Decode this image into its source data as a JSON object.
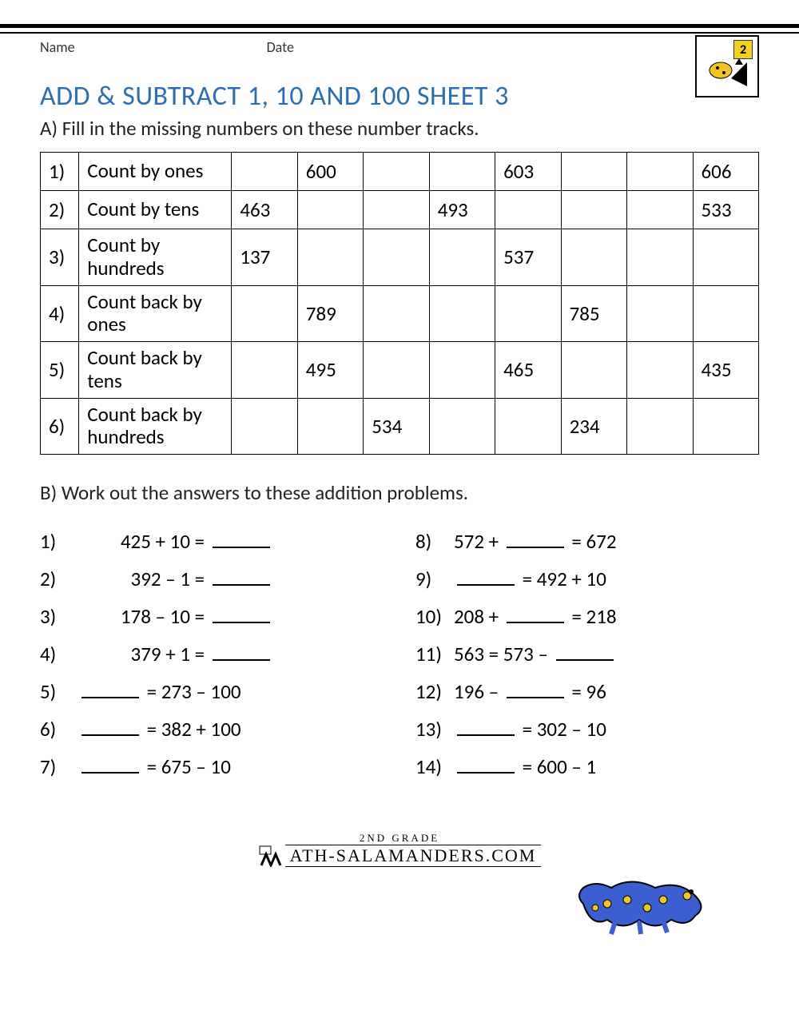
{
  "header": {
    "name_label": "Name",
    "date_label": "Date",
    "grade_badge": "2"
  },
  "title": "ADD & SUBTRACT 1, 10 AND 100 SHEET 3",
  "sectionA": {
    "instruction": "A) Fill in the missing numbers on these number tracks.",
    "rows": [
      {
        "n": "1)",
        "label": "Count by ones",
        "cells": [
          "",
          "600",
          "",
          "",
          "603",
          "",
          "",
          "606"
        ]
      },
      {
        "n": "2)",
        "label": "Count by tens",
        "cells": [
          "463",
          "",
          "",
          "493",
          "",
          "",
          "",
          "533"
        ]
      },
      {
        "n": "3)",
        "label": "Count by hundreds",
        "cells": [
          "137",
          "",
          "",
          "",
          "537",
          "",
          "",
          ""
        ]
      },
      {
        "n": "4)",
        "label": "Count back by ones",
        "cells": [
          "",
          "789",
          "",
          "",
          "",
          "785",
          "",
          ""
        ]
      },
      {
        "n": "5)",
        "label": "Count back by tens",
        "cells": [
          "",
          "495",
          "",
          "",
          "465",
          "",
          "",
          "435"
        ]
      },
      {
        "n": "6)",
        "label": "Count back by hundreds",
        "cells": [
          "",
          "",
          "534",
          "",
          "",
          "234",
          "",
          ""
        ]
      }
    ]
  },
  "sectionB": {
    "instruction": "B) Work out the answers to these addition problems.",
    "left": [
      {
        "n": "1)",
        "parts": [
          "425 + 10",
          "=",
          "_"
        ]
      },
      {
        "n": "2)",
        "parts": [
          "392 – 1",
          "=",
          "_"
        ]
      },
      {
        "n": "3)",
        "parts": [
          "178 – 10",
          "=",
          "_"
        ]
      },
      {
        "n": "4)",
        "parts": [
          "379 + 1",
          "=",
          "_"
        ]
      },
      {
        "n": "5)",
        "parts": [
          "_",
          "=",
          "273 – 100"
        ]
      },
      {
        "n": "6)",
        "parts": [
          "_",
          "=",
          "382 + 100"
        ]
      },
      {
        "n": "7)",
        "parts": [
          "_",
          "=",
          "675 – 10"
        ]
      }
    ],
    "right": [
      {
        "n": "8)",
        "parts": [
          "572 +",
          "_",
          "=",
          "672"
        ]
      },
      {
        "n": "9)",
        "parts": [
          "_",
          "=",
          "492 + 10"
        ]
      },
      {
        "n": "10)",
        "parts": [
          "208 +",
          "_",
          "=",
          "218"
        ]
      },
      {
        "n": "11)",
        "parts": [
          "563",
          "=",
          "573 –",
          "_"
        ]
      },
      {
        "n": "12)",
        "parts": [
          "196 –",
          "_",
          "=",
          "96"
        ]
      },
      {
        "n": "13)",
        "parts": [
          "_",
          "=",
          "302 – 10"
        ]
      },
      {
        "n": "14)",
        "parts": [
          "_",
          "=",
          "600 – 1"
        ]
      }
    ]
  },
  "footer": {
    "line1": "2ND GRADE",
    "line2": "ATH-SALAMANDERS.COM"
  },
  "colors": {
    "title": "#2b6fb0",
    "border": "#000000",
    "badge_bg": "#f5d020",
    "salamander_body": "#3b5fd1",
    "salamander_spot": "#f2c423"
  }
}
